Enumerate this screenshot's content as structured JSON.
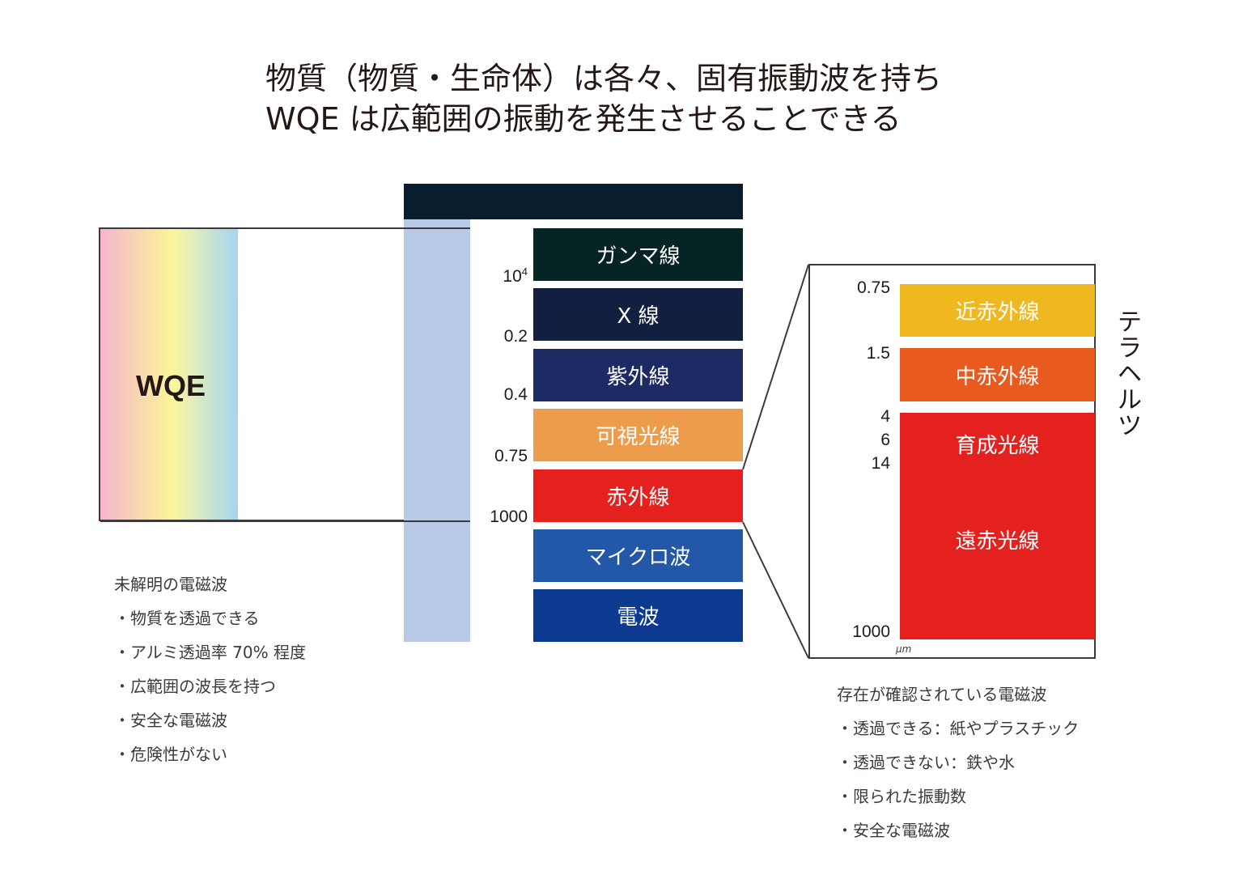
{
  "title": {
    "line1": "物質（物質・生命体）は各々、固有振動波を持ち",
    "line2": "WQE は広範囲の振動を発生させることできる"
  },
  "wqe": {
    "label": "WQE",
    "gradient_colors": [
      "#f3b6cf",
      "#f7cfb8",
      "#fbf59b",
      "#c4e2d3",
      "#a7d5f0"
    ]
  },
  "spectrum": {
    "bands": [
      {
        "label": "ガンマ線",
        "color": "#062424"
      },
      {
        "label": "X 線",
        "color": "#131f40"
      },
      {
        "label": "紫外線",
        "color": "#1e2a63"
      },
      {
        "label": "可視光線",
        "color": "#ec9c4b"
      },
      {
        "label": "赤外線",
        "color": "#e5211f"
      },
      {
        "label": "マイクロ波",
        "color": "#2358a8"
      },
      {
        "label": "電波",
        "color": "#0c3a90"
      }
    ],
    "ticks": [
      {
        "base": "10",
        "exp": "4"
      },
      {
        "base": "0.2",
        "exp": ""
      },
      {
        "base": "0.4",
        "exp": ""
      },
      {
        "base": "0.75",
        "exp": ""
      },
      {
        "base": "1000",
        "exp": ""
      }
    ],
    "top_bar_color": "#081d2d",
    "wqe_column_color": "#b9cae6"
  },
  "infrared_detail": {
    "bands": [
      {
        "label": "近赤外線",
        "color": "#efb81f"
      },
      {
        "label": "中赤外線",
        "color": "#e95a1f"
      },
      {
        "label": "育成光線",
        "color": "#e5211f"
      },
      {
        "label": "遠赤光線",
        "color": "#e5211f"
      }
    ],
    "ticks": [
      "0.75",
      "1.5",
      "4",
      "6",
      "14",
      "1000"
    ],
    "unit": "μm",
    "side_label": "テラヘルツ"
  },
  "left_notes": {
    "heading": "未解明の電磁波",
    "items": [
      "・物質を透過できる",
      "・アルミ透過率 70% 程度",
      "・広範囲の波長を持つ",
      "・安全な電磁波",
      "・危険性がない"
    ]
  },
  "right_notes": {
    "heading": "存在が確認されている電磁波",
    "items": [
      "・透過できる：紙やプラスチック",
      "・透過できない：鉄や水",
      "・限られた振動数",
      "・安全な電磁波"
    ]
  }
}
